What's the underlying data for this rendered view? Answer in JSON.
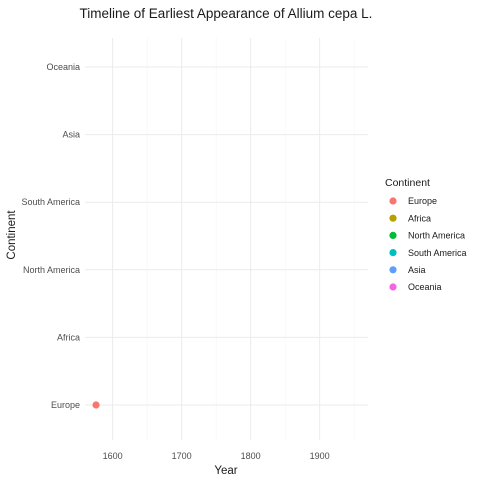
{
  "chart_data": {
    "type": "scatter",
    "title": "Timeline of Earliest Appearance of Allium cepa L.",
    "xlabel": "Year",
    "ylabel": "Continent",
    "xlim": [
      1560,
      1970
    ],
    "x_ticks": [
      1600,
      1700,
      1800,
      1900
    ],
    "categories": [
      "Europe",
      "Africa",
      "North America",
      "South America",
      "Asia",
      "Oceania"
    ],
    "grid": true,
    "legend": {
      "title": "Continent",
      "placement": "right",
      "entries": [
        {
          "name": "Europe",
          "color": "#F8766D"
        },
        {
          "name": "Africa",
          "color": "#B79F00"
        },
        {
          "name": "North America",
          "color": "#00BA38"
        },
        {
          "name": "South America",
          "color": "#00BFC4"
        },
        {
          "name": "Asia",
          "color": "#619CFF"
        },
        {
          "name": "Oceania",
          "color": "#F564E3"
        }
      ]
    },
    "points": [
      {
        "x": 1576,
        "y": "Europe",
        "color": "#F8766D"
      }
    ]
  }
}
